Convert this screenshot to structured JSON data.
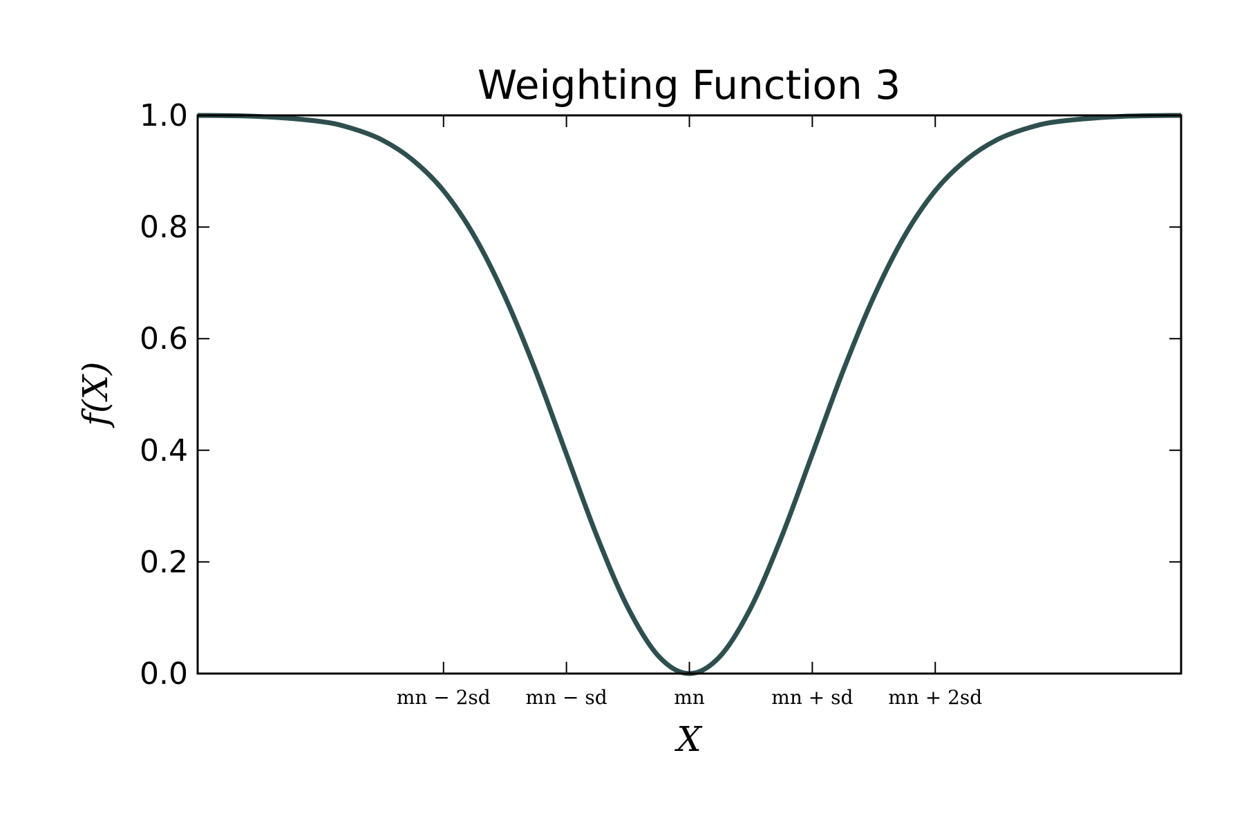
{
  "chart_data": {
    "type": "line",
    "title": "Weighting Function 3",
    "xlabel": "X",
    "ylabel": "f(X)",
    "xlim": [
      -4,
      4
    ],
    "ylim": [
      0,
      1
    ],
    "yticks": [
      {
        "value": 0.0,
        "label": "0.0"
      },
      {
        "value": 0.2,
        "label": "0.2"
      },
      {
        "value": 0.4,
        "label": "0.4"
      },
      {
        "value": 0.6,
        "label": "0.6"
      },
      {
        "value": 0.8,
        "label": "0.8"
      },
      {
        "value": 1.0,
        "label": "1.0"
      }
    ],
    "xticks": [
      {
        "value": -2,
        "label": "mn − 2sd"
      },
      {
        "value": -1,
        "label": "mn − sd"
      },
      {
        "value": 0,
        "label": "mn"
      },
      {
        "value": 1,
        "label": "mn + sd"
      },
      {
        "value": 2,
        "label": "mn + 2sd"
      }
    ],
    "grid": false,
    "series": [
      {
        "color": "#2f4f4f",
        "x": [
          -4,
          -3.5,
          -3,
          -2.75,
          -2.5,
          -2.25,
          -2,
          -1.75,
          -1.5,
          -1.25,
          -1,
          -0.75,
          -0.5,
          -0.25,
          0,
          0.25,
          0.5,
          0.75,
          1,
          1.25,
          1.5,
          1.75,
          2,
          2.25,
          2.5,
          2.75,
          3,
          3.5,
          4
        ],
        "y": [
          1.0,
          0.998,
          0.989,
          0.977,
          0.956,
          0.92,
          0.865,
          0.784,
          0.675,
          0.542,
          0.393,
          0.245,
          0.118,
          0.031,
          0.0,
          0.031,
          0.118,
          0.245,
          0.393,
          0.542,
          0.675,
          0.784,
          0.865,
          0.92,
          0.956,
          0.977,
          0.989,
          0.998,
          1.0
        ]
      }
    ]
  }
}
